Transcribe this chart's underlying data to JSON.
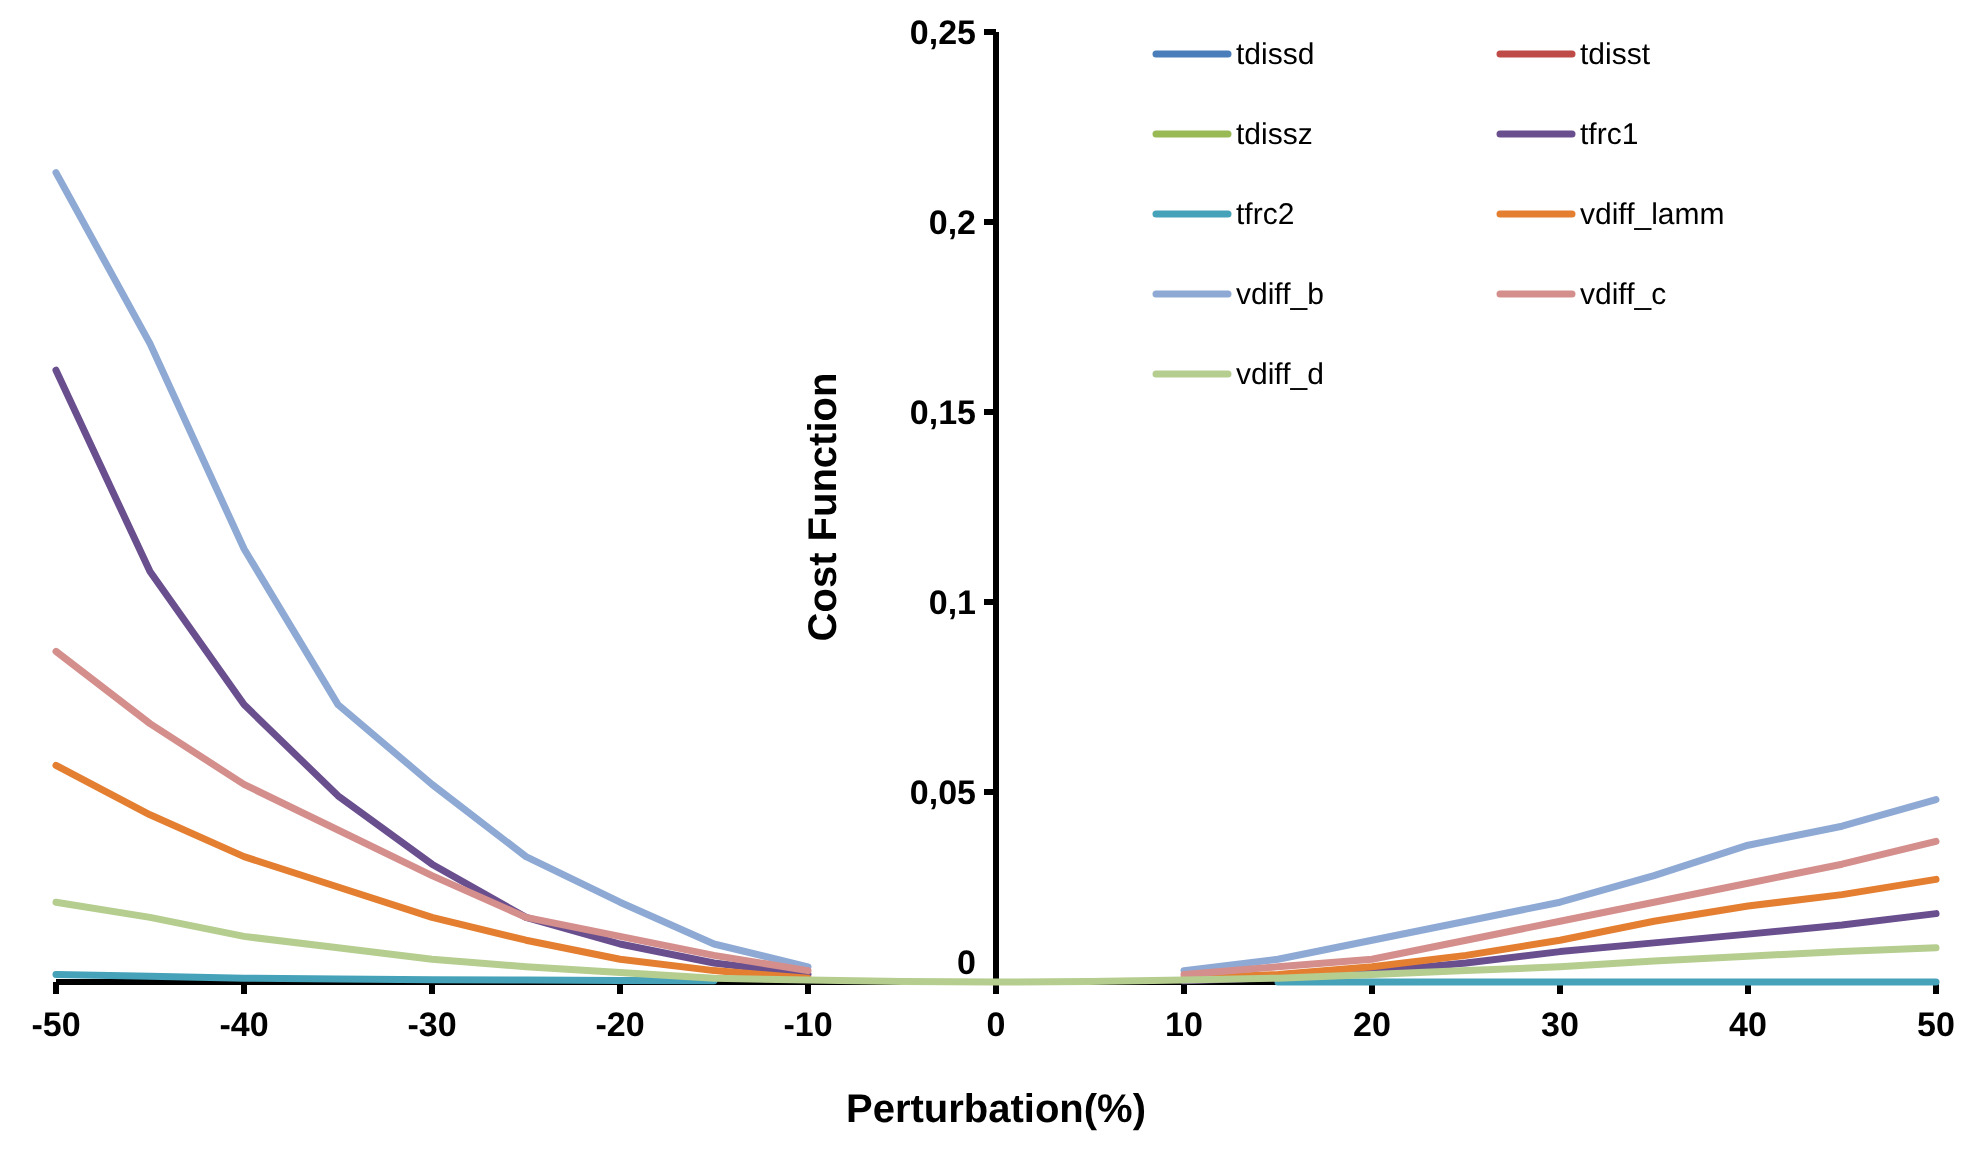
{
  "chart_data": {
    "type": "line",
    "xlabel": "Perturbation(%)",
    "ylabel": "Cost Function",
    "x": [
      -50,
      -45,
      -40,
      -35,
      -30,
      -25,
      -20,
      -15,
      -10,
      -5,
      0,
      5,
      10,
      15,
      20,
      25,
      30,
      35,
      40,
      45,
      50
    ],
    "xlim": [
      -50,
      50
    ],
    "xticks": [
      -50,
      -40,
      -30,
      -20,
      -10,
      0,
      10,
      20,
      30,
      40,
      50
    ],
    "ylim": [
      0,
      0.25
    ],
    "yticks": [
      {
        "value": 0,
        "label": "0"
      },
      {
        "value": 0.05,
        "label": "0,05"
      },
      {
        "value": 0.1,
        "label": "0,1"
      },
      {
        "value": 0.15,
        "label": "0,15"
      },
      {
        "value": 0.2,
        "label": "0,2"
      },
      {
        "value": 0.25,
        "label": "0,25"
      }
    ],
    "grid": false,
    "legend": "top right",
    "marker": "none",
    "line_style": "solid",
    "series": [
      {
        "name": "tdissd",
        "color": "#4a7ebb",
        "values": [
          null,
          null,
          null,
          null,
          null,
          null,
          null,
          null,
          null,
          null,
          null,
          null,
          null,
          null,
          null,
          null,
          null,
          null,
          null,
          null,
          null
        ]
      },
      {
        "name": "tdisst",
        "color": "#be4b48",
        "values": [
          null,
          null,
          null,
          null,
          null,
          null,
          null,
          null,
          null,
          null,
          null,
          null,
          null,
          null,
          null,
          null,
          null,
          null,
          null,
          null,
          null
        ]
      },
      {
        "name": "tdissz",
        "color": "#98b954",
        "values": [
          null,
          null,
          null,
          null,
          null,
          null,
          null,
          null,
          null,
          null,
          null,
          null,
          null,
          null,
          null,
          null,
          null,
          null,
          null,
          null,
          null
        ]
      },
      {
        "name": "tfrc1",
        "color": "#6a4f8f",
        "values": [
          0.161,
          0.108,
          0.073,
          0.049,
          0.031,
          0.017,
          0.01,
          0.005,
          0.002,
          null,
          null,
          null,
          0.0003,
          0.0012,
          0.0027,
          0.005,
          0.008,
          0.0103,
          0.0126,
          0.015,
          0.018
        ]
      },
      {
        "name": "tfrc2",
        "color": "#46a2b8",
        "values": [
          0.002,
          0.0015,
          0.001,
          0.0008,
          0.0006,
          0.0005,
          0.0004,
          0.0003,
          null,
          null,
          null,
          null,
          null,
          0,
          0,
          0,
          0,
          0,
          0,
          0,
          0
        ]
      },
      {
        "name": "vdiff_lamm",
        "color": "#e47f32",
        "values": [
          0.057,
          0.044,
          0.033,
          0.025,
          0.017,
          0.011,
          0.006,
          0.003,
          0.001,
          null,
          null,
          null,
          0.001,
          0.002,
          0.004,
          0.007,
          0.011,
          0.016,
          0.02,
          0.023,
          0.027
        ]
      },
      {
        "name": "vdiff_b",
        "color": "#8eaad4",
        "values": [
          0.213,
          0.168,
          0.114,
          0.073,
          0.052,
          0.033,
          0.021,
          0.01,
          0.004,
          null,
          null,
          null,
          0.003,
          0.006,
          0.011,
          0.016,
          0.021,
          0.028,
          0.036,
          0.041,
          0.048
        ]
      },
      {
        "name": "vdiff_c",
        "color": "#d48f8d",
        "values": [
          0.087,
          0.068,
          0.052,
          0.04,
          0.028,
          0.017,
          0.012,
          0.007,
          0.003,
          null,
          null,
          null,
          0.002,
          0.004,
          0.006,
          0.011,
          0.016,
          0.021,
          0.026,
          0.031,
          0.037
        ]
      },
      {
        "name": "vdiff_d",
        "color": "#b5cd8f",
        "values": [
          0.021,
          0.017,
          0.012,
          0.009,
          0.006,
          0.004,
          0.0025,
          0.001,
          0.0005,
          0.0001,
          0,
          0.0001,
          0.0005,
          0.001,
          0.002,
          0.003,
          0.004,
          0.0055,
          0.0068,
          0.008,
          0.009
        ]
      }
    ]
  }
}
